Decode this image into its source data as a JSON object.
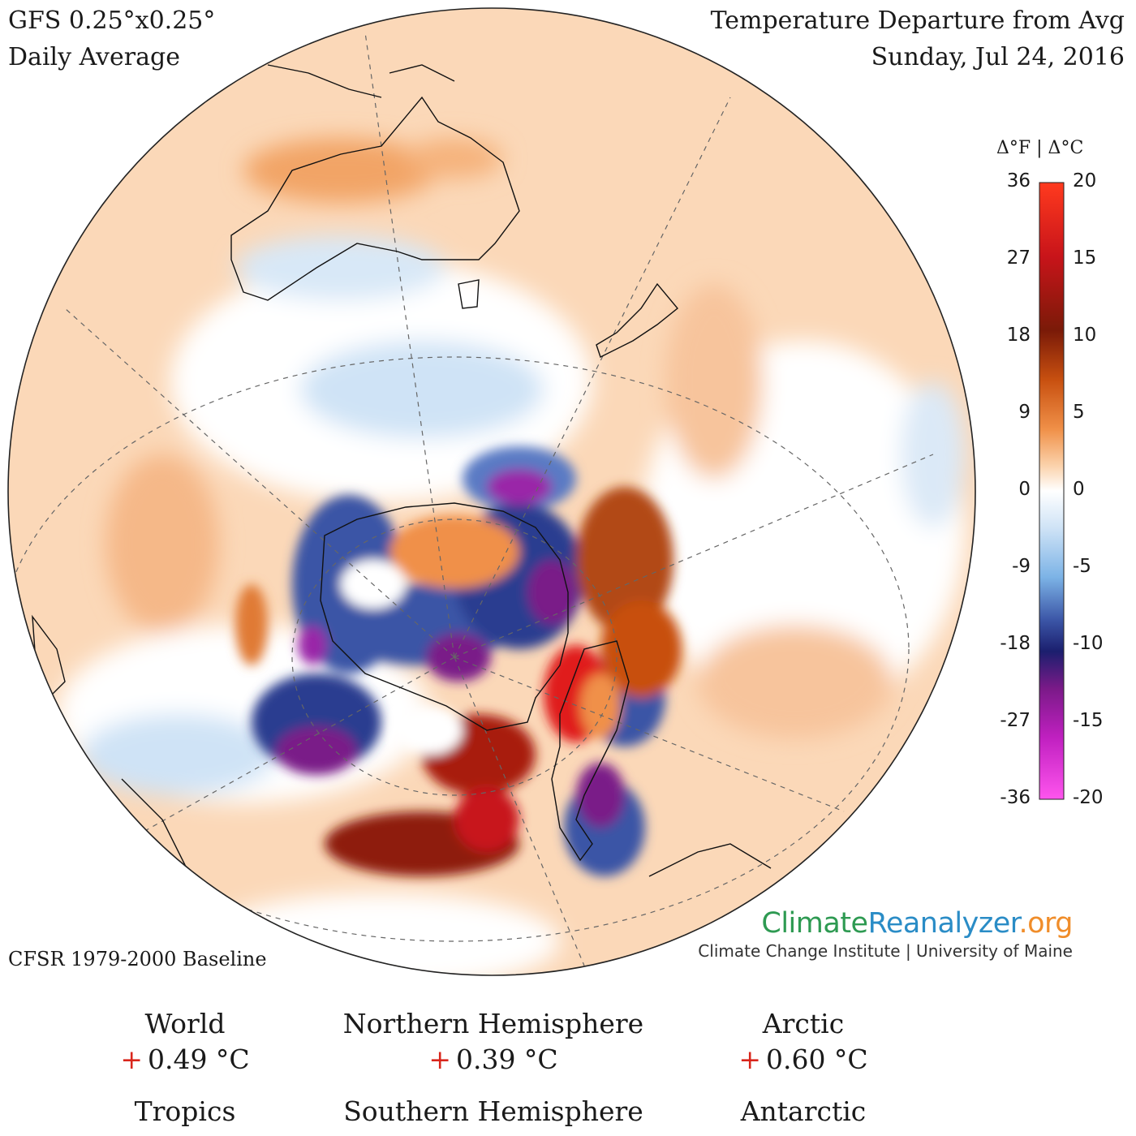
{
  "header": {
    "model": "GFS 0.25°x0.25°",
    "period": "Daily Average",
    "title": "Temperature Departure from Avg",
    "date": "Sunday, Jul 24, 2016"
  },
  "map": {
    "projection": "orthographic",
    "center": "South Pole",
    "variable": "2m temperature anomaly",
    "landmasses": [
      "Australia",
      "New Zealand",
      "Tasmania",
      "Antarctica",
      "South America",
      "Antarctic Peninsula",
      "Madagascar"
    ]
  },
  "legend": {
    "header": "Δ°F | Δ°C",
    "fahrenheit_ticks": [
      "36",
      "27",
      "18",
      "9",
      "0",
      "-9",
      "-18",
      "-27",
      "-36"
    ],
    "celsius_ticks": [
      "20",
      "15",
      "10",
      "5",
      "0",
      "-5",
      "-10",
      "-15",
      "-20"
    ],
    "range_c": [
      -20,
      20
    ],
    "colors": [
      "#ff55ee",
      "#c020c0",
      "#7a1a88",
      "#1b1f6e",
      "#3b55a6",
      "#7cb3e6",
      "#ffffff",
      "#fbd3ad",
      "#f09048",
      "#c85010",
      "#7a1a08",
      "#c8141a",
      "#ff3a1e"
    ]
  },
  "footer": {
    "baseline": "CFSR 1979-2000 Baseline",
    "brand_climate": "Climate",
    "brand_reanalyzer": "Reanalyzer",
    "brand_org": ".org",
    "institute": "Climate Change Institute | University of Maine"
  },
  "stats": [
    {
      "label": "World",
      "sign": "+",
      "value": "0.49 °C"
    },
    {
      "label": "Northern Hemisphere",
      "sign": "+",
      "value": "0.39 °C"
    },
    {
      "label": "Arctic",
      "sign": "+",
      "value": "0.60 °C"
    },
    {
      "label": "Tropics",
      "sign": "",
      "value": ""
    },
    {
      "label": "Southern Hemisphere",
      "sign": "",
      "value": ""
    },
    {
      "label": "Antarctic",
      "sign": "",
      "value": ""
    }
  ]
}
